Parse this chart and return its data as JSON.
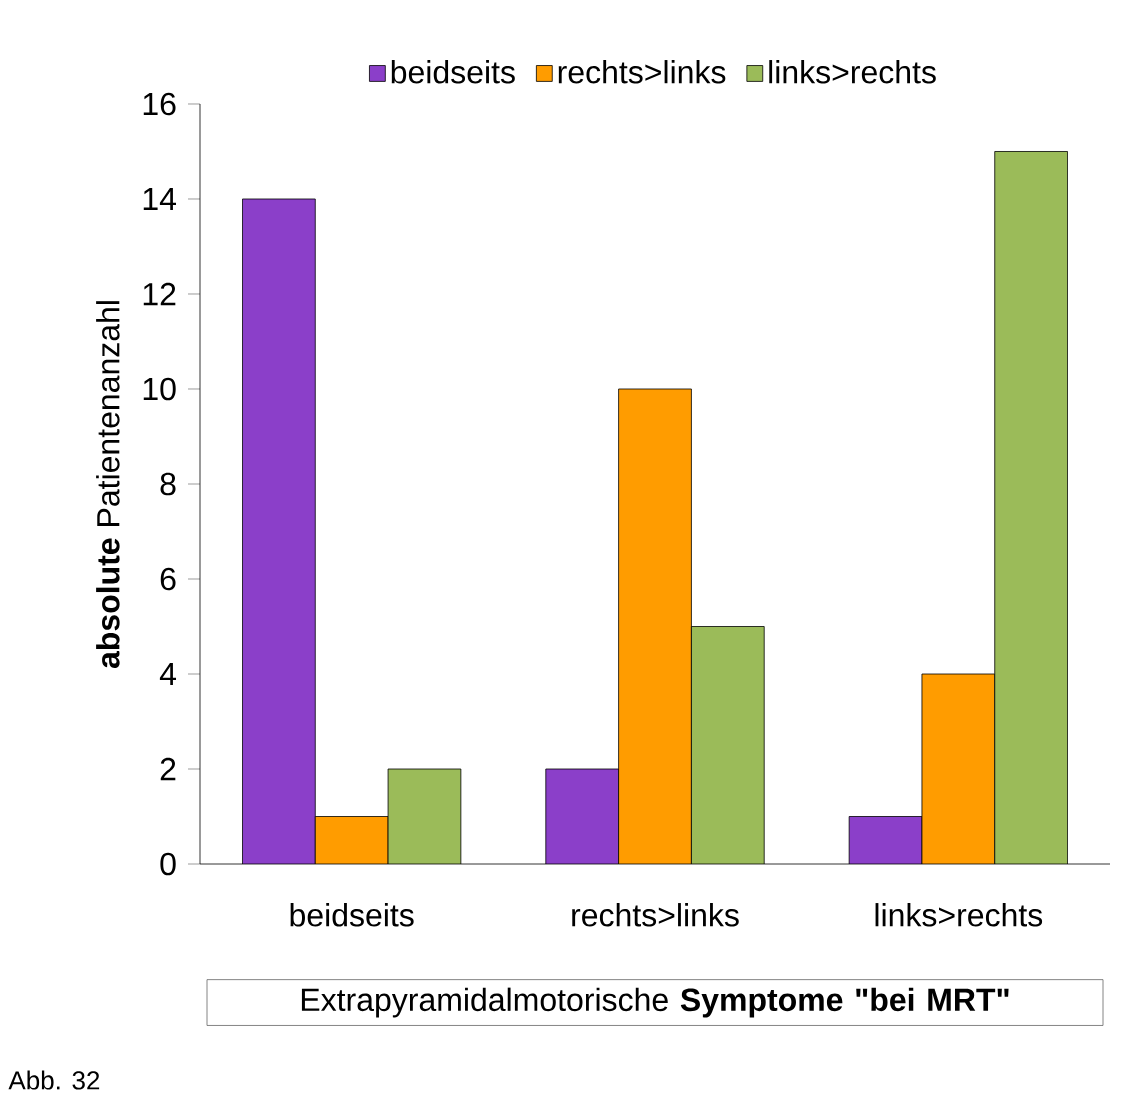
{
  "chart_data": {
    "type": "bar",
    "categories": [
      "beidseits",
      "rechts>links",
      "links>rechts"
    ],
    "series": [
      {
        "name": "beidseits",
        "color": "#8b3fc9",
        "values": [
          14,
          2,
          1
        ]
      },
      {
        "name": "rechts>links",
        "color": "#ff9c00",
        "values": [
          1,
          10,
          4
        ]
      },
      {
        "name": "links>rechts",
        "color": "#9bbb59",
        "values": [
          2,
          5,
          15
        ]
      }
    ],
    "xlabel": "Extrapyramidalmotorische **Symptome** **\"bei MRT\"**",
    "ylabel": "**absolute** Patientenanzahl",
    "ylim": [
      0,
      16
    ],
    "yticks": [
      0,
      2,
      4,
      6,
      8,
      10,
      12,
      14,
      16
    ],
    "legend": "top",
    "grid": false,
    "annotations": [
      "Abb. 32"
    ]
  }
}
